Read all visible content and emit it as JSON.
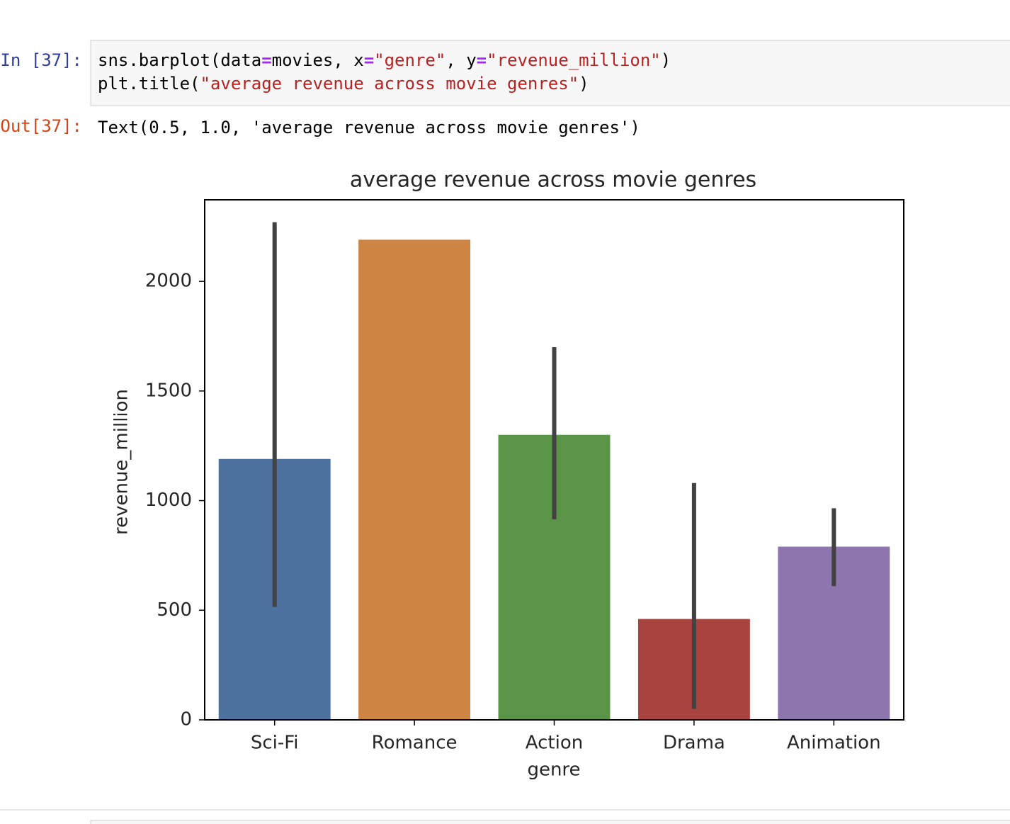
{
  "notebook": {
    "input_prompt": "In [37]:",
    "code": [
      [
        "sns.barplot(data",
        "=",
        "movies, x",
        "=",
        "\"genre\"",
        ", y",
        "=",
        "\"revenue_million\"",
        ")"
      ],
      [
        "plt.title(",
        "\"average revenue across movie genres\"",
        ")"
      ]
    ],
    "output_prompt": "Out[37]:",
    "output": "Text(0.5, 1.0, 'average revenue across movie genres')"
  },
  "chart_data": {
    "type": "bar",
    "title": "average revenue across movie genres",
    "x_label": "genre",
    "y_label": "revenue_million",
    "categories": [
      "Sci-Fi",
      "Romance",
      "Action",
      "Drama",
      "Animation"
    ],
    "values": [
      1190,
      2190,
      1300,
      460,
      790
    ],
    "colors": [
      "#4e72a0",
      "#ce8442",
      "#5a9446",
      "#a84340",
      "#8d75ae"
    ],
    "error_low": [
      515,
      null,
      915,
      50,
      610
    ],
    "error_high": [
      2270,
      null,
      1700,
      1080,
      965
    ],
    "ylim": [
      0,
      2372
    ],
    "yticks": [
      0,
      500,
      1000,
      1500,
      2000
    ],
    "grid": false
  }
}
